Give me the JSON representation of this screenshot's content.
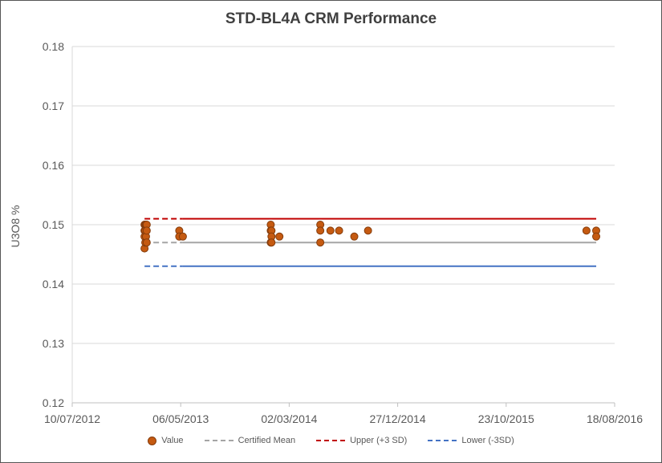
{
  "chart_data": {
    "type": "scatter",
    "title": "STD-BL4A CRM Performance",
    "xlabel": "",
    "ylabel": "U3O8 %",
    "xlim": [
      "2012-07-10",
      "2016-08-18"
    ],
    "ylim": [
      0.12,
      0.18
    ],
    "x_ticks": [
      "10/07/2012",
      "06/05/2013",
      "02/03/2014",
      "27/12/2014",
      "23/10/2015",
      "18/08/2016"
    ],
    "y_ticks": [
      "0.12",
      "0.13",
      "0.14",
      "0.15",
      "0.16",
      "0.17",
      "0.18"
    ],
    "grid": true,
    "legend_position": "bottom",
    "series": [
      {
        "name": "Value",
        "kind": "markers",
        "color": "#c55a11",
        "edge_color": "#843c0c",
        "points": [
          {
            "x": "2013-01-26",
            "y": 0.15
          },
          {
            "x": "2013-01-26",
            "y": 0.149
          },
          {
            "x": "2013-01-26",
            "y": 0.148
          },
          {
            "x": "2013-01-26",
            "y": 0.146
          },
          {
            "x": "2013-01-28",
            "y": 0.15
          },
          {
            "x": "2013-01-28",
            "y": 0.149
          },
          {
            "x": "2013-01-28",
            "y": 0.147
          },
          {
            "x": "2013-01-30",
            "y": 0.15
          },
          {
            "x": "2013-01-30",
            "y": 0.148
          },
          {
            "x": "2013-02-01",
            "y": 0.15
          },
          {
            "x": "2013-02-01",
            "y": 0.149
          },
          {
            "x": "2013-02-01",
            "y": 0.147
          },
          {
            "x": "2013-05-02",
            "y": 0.149
          },
          {
            "x": "2013-05-02",
            "y": 0.148
          },
          {
            "x": "2013-05-12",
            "y": 0.148
          },
          {
            "x": "2014-01-10",
            "y": 0.15
          },
          {
            "x": "2014-01-10",
            "y": 0.149
          },
          {
            "x": "2014-01-10",
            "y": 0.147
          },
          {
            "x": "2014-01-12",
            "y": 0.149
          },
          {
            "x": "2014-01-12",
            "y": 0.148
          },
          {
            "x": "2014-01-12",
            "y": 0.147
          },
          {
            "x": "2014-02-03",
            "y": 0.148
          },
          {
            "x": "2014-05-27",
            "y": 0.15
          },
          {
            "x": "2014-05-27",
            "y": 0.149
          },
          {
            "x": "2014-05-27",
            "y": 0.147
          },
          {
            "x": "2014-06-24",
            "y": 0.149
          },
          {
            "x": "2014-07-18",
            "y": 0.149
          },
          {
            "x": "2014-08-29",
            "y": 0.148
          },
          {
            "x": "2014-10-06",
            "y": 0.149
          },
          {
            "x": "2016-06-01",
            "y": 0.149
          },
          {
            "x": "2016-06-28",
            "y": 0.149
          },
          {
            "x": "2016-06-28",
            "y": 0.148
          }
        ]
      },
      {
        "name": "Certified Mean",
        "kind": "line",
        "color": "#a5a5a5",
        "segments": [
          {
            "style": "dashed",
            "x": [
              "2013-01-26",
              "2013-05-12"
            ],
            "y": [
              0.147,
              0.147
            ]
          },
          {
            "style": "solid",
            "x": [
              "2013-05-12",
              "2016-06-28"
            ],
            "y": [
              0.147,
              0.147
            ]
          }
        ]
      },
      {
        "name": "Upper (+3 SD)",
        "kind": "line",
        "color": "#c00000",
        "segments": [
          {
            "style": "dashed",
            "x": [
              "2013-01-26",
              "2013-05-12"
            ],
            "y": [
              0.151,
              0.151
            ]
          },
          {
            "style": "solid",
            "x": [
              "2013-05-12",
              "2016-06-28"
            ],
            "y": [
              0.151,
              0.151
            ]
          }
        ]
      },
      {
        "name": "Lower (-3SD)",
        "kind": "line",
        "color": "#4472c4",
        "segments": [
          {
            "style": "dashed",
            "x": [
              "2013-01-26",
              "2013-05-12"
            ],
            "y": [
              0.143,
              0.143
            ]
          },
          {
            "style": "solid",
            "x": [
              "2013-05-12",
              "2016-06-28"
            ],
            "y": [
              0.143,
              0.143
            ]
          }
        ]
      }
    ]
  }
}
